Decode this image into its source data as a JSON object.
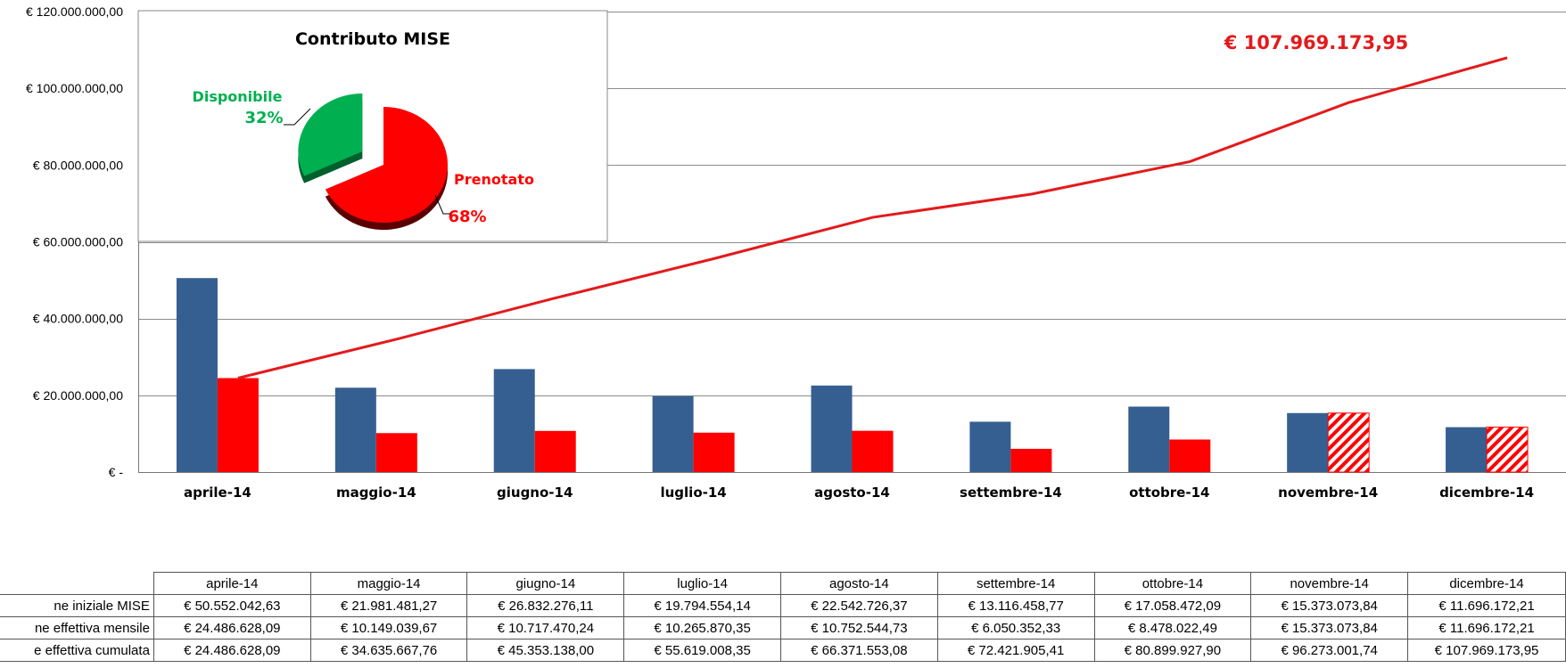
{
  "chart_data": [
    {
      "type": "bar",
      "categories": [
        "aprile-14",
        "maggio-14",
        "giugno-14",
        "luglio-14",
        "agosto-14",
        "settembre-14",
        "ottobre-14",
        "novembre-14",
        "dicembre-14"
      ],
      "y_ticks": [
        "€ -",
        "€ 20.000.000,00",
        "€ 40.000.000,00",
        "€ 60.000.000,00",
        "€ 80.000.000,00",
        "€ 100.000.000,00",
        "€ 120.000.000,00"
      ],
      "ylim": [
        0,
        120000000
      ],
      "grid": true,
      "series": [
        {
          "kind": "bar",
          "color": "#365F91",
          "values": [
            50552042.63,
            21981481.27,
            26832276.11,
            19794554.14,
            22542726.37,
            13116458.77,
            17058472.09,
            15373073.84,
            11696172.21
          ]
        },
        {
          "kind": "bar",
          "color": "#FF0000",
          "hatched_from_index": 7,
          "values": [
            24486628.09,
            10149039.67,
            10717470.24,
            10265870.35,
            10752544.73,
            6050352.33,
            8478022.49,
            15373073.84,
            11696172.21
          ]
        },
        {
          "kind": "line",
          "color": "#E31A1C",
          "values": [
            24486628.09,
            34635667.76,
            45353138.0,
            55619008.35,
            66371553.08,
            72421905.41,
            80899927.9,
            96273001.74,
            107969173.95
          ]
        }
      ],
      "annotation": {
        "text": "€ 107.969.173,95",
        "color": "#E31A1C"
      }
    },
    {
      "type": "pie",
      "title": "Contributo MISE",
      "slices": [
        {
          "label": "Disponibile",
          "percent_label": "32%",
          "value": 32,
          "color": "#00B050"
        },
        {
          "label": "Prenotato",
          "percent_label": "68%",
          "value": 68,
          "color": "#FF0000"
        }
      ]
    }
  ],
  "table": {
    "columns": [
      "aprile-14",
      "maggio-14",
      "giugno-14",
      "luglio-14",
      "agosto-14",
      "settembre-14",
      "ottobre-14",
      "novembre-14",
      "dicembre-14"
    ],
    "rows": [
      {
        "label": "ne iniziale MISE",
        "cells": [
          "€ 50.552.042,63",
          "€ 21.981.481,27",
          "€ 26.832.276,11",
          "€ 19.794.554,14",
          "€ 22.542.726,37",
          "€ 13.116.458,77",
          "€ 17.058.472,09",
          "€ 15.373.073,84",
          "€ 11.696.172,21"
        ]
      },
      {
        "label": "ne effettiva mensile",
        "cells": [
          "€ 24.486.628,09",
          "€ 10.149.039,67",
          "€ 10.717.470,24",
          "€ 10.265.870,35",
          "€ 10.752.544,73",
          "€ 6.050.352,33",
          "€ 8.478.022,49",
          "€ 15.373.073,84",
          "€ 11.696.172,21"
        ]
      },
      {
        "label": "e effettiva cumulata",
        "cells": [
          "€ 24.486.628,09",
          "€ 34.635.667,76",
          "€ 45.353.138,00",
          "€ 55.619.008,35",
          "€ 66.371.553,08",
          "€ 72.421.905,41",
          "€ 80.899.927,90",
          "€ 96.273.001,74",
          "€ 107.969.173,95"
        ]
      }
    ]
  }
}
